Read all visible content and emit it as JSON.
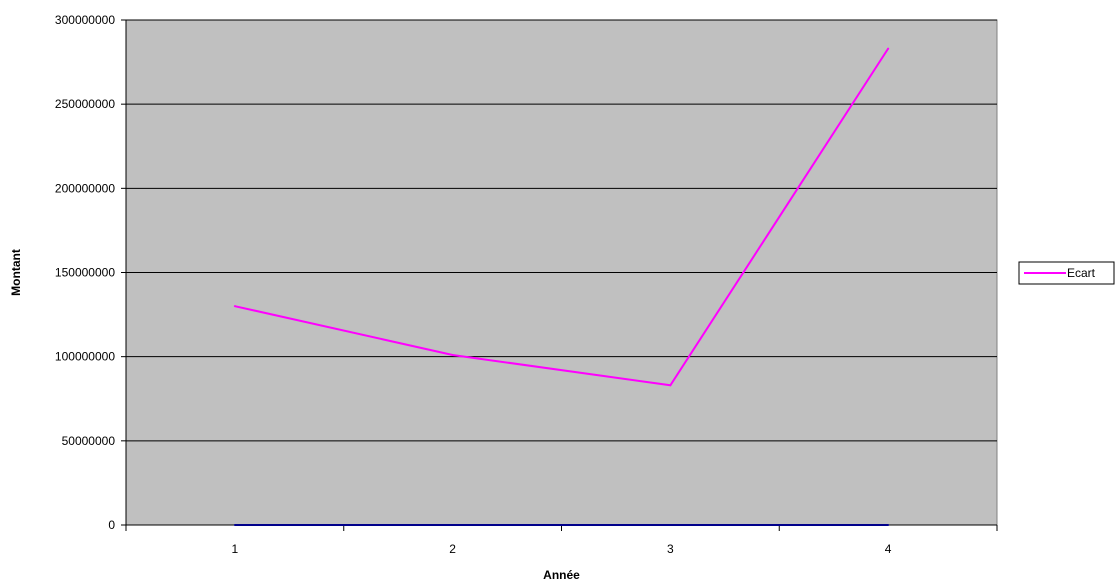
{
  "chart_data": {
    "type": "line",
    "title": "",
    "xlabel": "Année",
    "ylabel": "Montant",
    "categories": [
      "1",
      "2",
      "3",
      "4"
    ],
    "series": [
      {
        "name": "Ecart",
        "values": [
          130000000,
          101000000,
          83000000,
          283000000
        ],
        "color": "#ff00ff",
        "in_legend": true
      },
      {
        "name": "",
        "values": [
          0,
          0,
          0,
          0
        ],
        "color": "#00008b",
        "in_legend": false
      }
    ],
    "ylim": [
      0,
      300000000
    ],
    "yticks": [
      "0",
      "50000000",
      "100000000",
      "150000000",
      "200000000",
      "250000000",
      "300000000"
    ],
    "grid": true,
    "plot_background": "#c0c0c0",
    "legend_position": "right"
  }
}
